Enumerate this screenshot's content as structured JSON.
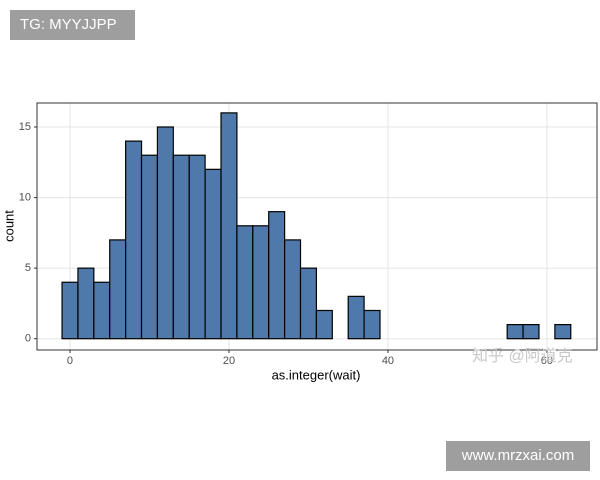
{
  "chart_data": {
    "type": "histogram",
    "x_label": "as.integer(wait)",
    "y_label": "count",
    "bins": [
      -1,
      1,
      3,
      5,
      7,
      9,
      11,
      13,
      15,
      17,
      19,
      21,
      23,
      25,
      27,
      29,
      31,
      33,
      35,
      37,
      39,
      41,
      43,
      45,
      47,
      49,
      51,
      53,
      55,
      57,
      59,
      61,
      63
    ],
    "values": [
      4,
      5,
      4,
      7,
      14,
      13,
      15,
      13,
      13,
      12,
      16,
      8,
      8,
      9,
      7,
      5,
      2,
      0,
      3,
      2,
      0,
      0,
      0,
      0,
      0,
      0,
      0,
      0,
      1,
      1,
      0,
      1
    ],
    "color": "#4f79aa",
    "edge_color": "#000000",
    "xlim": [
      -4.15,
      66.3
    ],
    "ylim": [
      -0.8,
      16.7
    ],
    "xticks": [
      0,
      20,
      40,
      60
    ],
    "yticks": [
      0,
      5,
      10,
      15
    ],
    "grid": true,
    "annotations": [
      "TG: MYYJJPP",
      "知乎 @阿道克",
      "www.mrzxai.com"
    ]
  }
}
